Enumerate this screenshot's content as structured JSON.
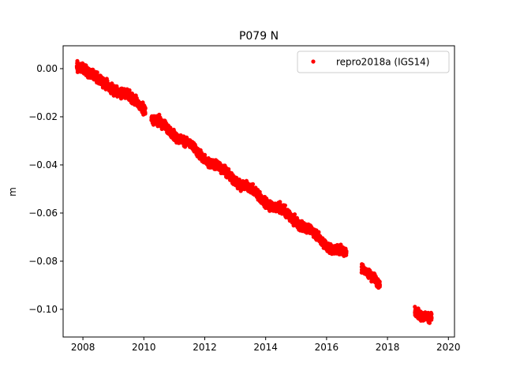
{
  "chart_data": {
    "type": "scatter",
    "title": "P079 N",
    "xlabel": "",
    "ylabel": "m",
    "xlim": [
      2007.35,
      2020.2
    ],
    "ylim": [
      -0.1115,
      0.0095
    ],
    "x_ticks": [
      2008,
      2010,
      2012,
      2014,
      2016,
      2018,
      2020
    ],
    "x_tick_labels": [
      "2008",
      "2010",
      "2012",
      "2014",
      "2016",
      "2018",
      "2020"
    ],
    "y_ticks": [
      0.0,
      -0.02,
      -0.04,
      -0.06,
      -0.08,
      -0.1
    ],
    "y_tick_labels": [
      "0.00",
      "−0.02",
      "−0.04",
      "−0.06",
      "−0.08",
      "−0.10"
    ],
    "grid": false,
    "legend": {
      "position": "top-right",
      "entries": [
        "repro2018a (IGS14)"
      ]
    },
    "series": [
      {
        "name": "repro2018a (IGS14)",
        "color": "#ff0000",
        "marker": "circle",
        "trend": [
          [
            2007.8,
            0.0005
          ],
          [
            2008.0,
            0.0012
          ],
          [
            2008.5,
            -0.005
          ],
          [
            2009.0,
            -0.008
          ],
          [
            2009.5,
            -0.012
          ],
          [
            2010.0,
            -0.016
          ],
          [
            2010.3,
            -0.021
          ],
          [
            2011.0,
            -0.027
          ],
          [
            2012.0,
            -0.037
          ],
          [
            2013.0,
            -0.046
          ],
          [
            2014.0,
            -0.055
          ],
          [
            2015.0,
            -0.063
          ],
          [
            2015.6,
            -0.069
          ],
          [
            2016.0,
            -0.073
          ],
          [
            2016.6,
            -0.077
          ],
          [
            2017.2,
            -0.083
          ],
          [
            2017.7,
            -0.09
          ],
          [
            2019.0,
            -0.101
          ],
          [
            2019.4,
            -0.104
          ]
        ],
        "segments": [
          [
            2007.8,
            2010.05
          ],
          [
            2010.25,
            2016.65
          ],
          [
            2017.15,
            2017.75
          ],
          [
            2018.9,
            2019.45
          ]
        ],
        "noise_std": 0.0016
      }
    ]
  }
}
